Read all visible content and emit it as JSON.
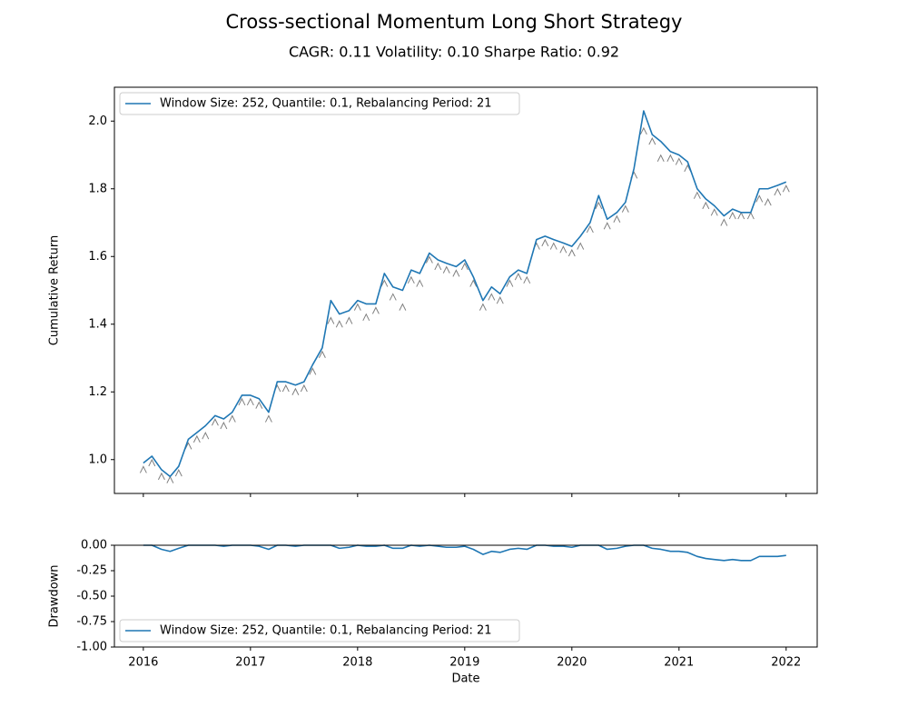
{
  "chart_data": [
    {
      "type": "line",
      "title": "Cross-sectional Momentum Long Short Strategy",
      "subtitle": "CAGR: 0.11 Volatility: 0.10 Sharpe Ratio: 0.92",
      "ylabel": "Cumulative Return",
      "legend": "upper left",
      "x": [
        2016.0,
        2016.08,
        2016.17,
        2016.25,
        2016.33,
        2016.42,
        2016.5,
        2016.58,
        2016.67,
        2016.75,
        2016.83,
        2016.92,
        2017.0,
        2017.08,
        2017.17,
        2017.25,
        2017.33,
        2017.42,
        2017.5,
        2017.58,
        2017.67,
        2017.75,
        2017.83,
        2017.92,
        2018.0,
        2018.08,
        2018.17,
        2018.25,
        2018.33,
        2018.42,
        2018.5,
        2018.58,
        2018.67,
        2018.75,
        2018.83,
        2018.92,
        2019.0,
        2019.08,
        2019.17,
        2019.25,
        2019.33,
        2019.42,
        2019.5,
        2019.58,
        2019.67,
        2019.75,
        2019.83,
        2019.92,
        2020.0,
        2020.08,
        2020.17,
        2020.25,
        2020.33,
        2020.42,
        2020.5,
        2020.58,
        2020.67,
        2020.75,
        2020.83,
        2020.92,
        2021.0,
        2021.08,
        2021.17,
        2021.25,
        2021.33,
        2021.42,
        2021.5,
        2021.58,
        2021.67,
        2021.75,
        2021.83,
        2021.92,
        2022.0
      ],
      "series": [
        {
          "name": "Window Size: 252, Quantile: 0.1, Rebalancing Period: 21",
          "color": "#1f77b4",
          "values": [
            0.99,
            1.01,
            0.97,
            0.95,
            0.98,
            1.06,
            1.08,
            1.1,
            1.13,
            1.12,
            1.14,
            1.19,
            1.19,
            1.18,
            1.14,
            1.23,
            1.23,
            1.22,
            1.23,
            1.28,
            1.33,
            1.47,
            1.43,
            1.44,
            1.47,
            1.46,
            1.46,
            1.55,
            1.51,
            1.5,
            1.56,
            1.55,
            1.61,
            1.59,
            1.58,
            1.57,
            1.59,
            1.54,
            1.47,
            1.51,
            1.49,
            1.54,
            1.56,
            1.55,
            1.65,
            1.66,
            1.65,
            1.64,
            1.63,
            1.66,
            1.7,
            1.78,
            1.71,
            1.73,
            1.76,
            1.86,
            2.03,
            1.96,
            1.94,
            1.91,
            1.9,
            1.88,
            1.8,
            1.77,
            1.75,
            1.72,
            1.74,
            1.73,
            1.73,
            1.8,
            1.8,
            1.81,
            1.82
          ]
        }
      ],
      "markers": {
        "color": "#808080",
        "values": [
          0.97,
          0.99,
          0.95,
          0.94,
          0.96,
          1.04,
          1.06,
          1.07,
          1.11,
          1.1,
          1.12,
          1.17,
          1.17,
          1.16,
          1.12,
          1.21,
          1.21,
          1.2,
          1.21,
          1.26,
          1.31,
          1.41,
          1.4,
          1.41,
          1.45,
          1.42,
          1.44,
          1.52,
          1.48,
          1.45,
          1.53,
          1.52,
          1.59,
          1.57,
          1.56,
          1.55,
          1.57,
          1.52,
          1.45,
          1.48,
          1.47,
          1.52,
          1.54,
          1.53,
          1.63,
          1.64,
          1.63,
          1.62,
          1.61,
          1.63,
          1.68,
          1.75,
          1.69,
          1.71,
          1.74,
          1.84,
          1.97,
          1.94,
          1.89,
          1.89,
          1.88,
          1.86,
          1.78,
          1.75,
          1.73,
          1.7,
          1.72,
          1.72,
          1.72,
          1.77,
          1.76,
          1.79,
          1.8
        ]
      },
      "xlim": [
        2015.73,
        2022.29
      ],
      "xticks": [
        2016,
        2017,
        2018,
        2019,
        2020,
        2021,
        2022
      ],
      "ylim": [
        0.9,
        2.1
      ],
      "yticks": [
        {
          "value": 1,
          "label": "1.0"
        },
        1.2,
        1.4,
        1.6,
        1.8,
        {
          "value": 2,
          "label": "2.0"
        }
      ]
    },
    {
      "type": "line",
      "ylabel": "Drawdown",
      "xlabel": "Date",
      "legend": "lower left",
      "x": [
        2016.0,
        2016.08,
        2016.17,
        2016.25,
        2016.33,
        2016.42,
        2016.5,
        2016.58,
        2016.67,
        2016.75,
        2016.83,
        2016.92,
        2017.0,
        2017.08,
        2017.17,
        2017.25,
        2017.33,
        2017.42,
        2017.5,
        2017.58,
        2017.67,
        2017.75,
        2017.83,
        2017.92,
        2018.0,
        2018.08,
        2018.17,
        2018.25,
        2018.33,
        2018.42,
        2018.5,
        2018.58,
        2018.67,
        2018.75,
        2018.83,
        2018.92,
        2019.0,
        2019.08,
        2019.17,
        2019.25,
        2019.33,
        2019.42,
        2019.5,
        2019.58,
        2019.67,
        2019.75,
        2019.83,
        2019.92,
        2020.0,
        2020.08,
        2020.17,
        2020.25,
        2020.33,
        2020.42,
        2020.5,
        2020.58,
        2020.67,
        2020.75,
        2020.83,
        2020.92,
        2021.0,
        2021.08,
        2021.17,
        2021.25,
        2021.33,
        2021.42,
        2021.5,
        2021.58,
        2021.67,
        2021.75,
        2021.83,
        2021.92,
        2022.0
      ],
      "series": [
        {
          "name": "Window Size: 252, Quantile: 0.1, Rebalancing Period: 21",
          "color": "#1f77b4",
          "values": [
            0,
            0,
            -0.04,
            -0.06,
            -0.03,
            0,
            0,
            0,
            0,
            -0.01,
            0,
            0,
            0,
            -0.01,
            -0.04,
            0,
            0,
            -0.01,
            0,
            0,
            0,
            0,
            -0.03,
            -0.02,
            0,
            -0.01,
            -0.01,
            0,
            -0.03,
            -0.03,
            0,
            -0.01,
            0,
            -0.01,
            -0.02,
            -0.02,
            -0.01,
            -0.04,
            -0.09,
            -0.06,
            -0.07,
            -0.04,
            -0.03,
            -0.04,
            0,
            0,
            -0.01,
            -0.01,
            -0.02,
            0,
            0,
            0,
            -0.04,
            -0.03,
            -0.01,
            0,
            0,
            -0.03,
            -0.04,
            -0.06,
            -0.06,
            -0.07,
            -0.11,
            -0.13,
            -0.14,
            -0.15,
            -0.14,
            -0.15,
            -0.15,
            -0.11,
            -0.11,
            -0.11,
            -0.1
          ]
        }
      ],
      "xlim": [
        2015.73,
        2022.29
      ],
      "xticks": [
        2016,
        2017,
        2018,
        2019,
        2020,
        2021,
        2022
      ],
      "ylim": [
        -1,
        0
      ],
      "yticks": [
        {
          "value": -1,
          "label": "-1.00"
        },
        {
          "value": -0.75,
          "label": "-0.75"
        },
        {
          "value": -0.5,
          "label": "-0.50"
        },
        {
          "value": -0.25,
          "label": "-0.25"
        },
        {
          "value": 0,
          "label": "0.00"
        }
      ]
    }
  ]
}
